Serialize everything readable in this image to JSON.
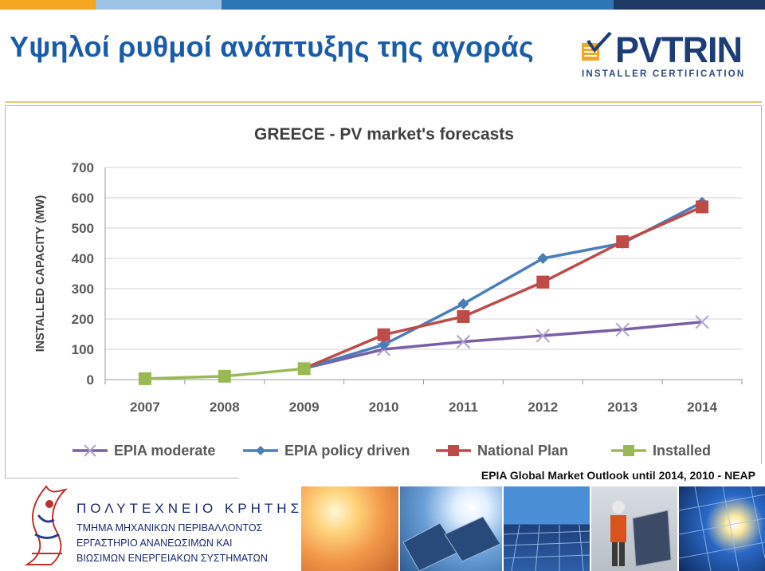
{
  "slide": {
    "title": "Υψηλοί ρυθμοί ανάπτυξης της αγοράς",
    "logo_text": "PVTRIN",
    "logo_subtitle": "INSTALLER CERTIFICATION",
    "caption": "EPIA Global Market Outlook until 2014, 2010 - NEAP",
    "accent_colors": [
      "#f5a623",
      "#9dc3e6",
      "#2e75b6",
      "#1f3864"
    ]
  },
  "university": {
    "name": "ΠΟΛΥΤΕΧΝΕΙΟ ΚΡΗΤΗΣ",
    "department": "ΤΜΗΜΑ ΜΗΧΑΝΙΚΩΝ ΠΕΡΙΒΑΛΛΟΝΤΟΣ",
    "lab_line1": "ΕΡΓΑΣΤΗΡΙΟ ΑΝΑΝΕΩΣΙΜΩΝ ΚΑΙ",
    "lab_line2": "ΒΙΩΣΙΜΩΝ ΕΝΕΡΓΕΙΑΚΩΝ ΣΥΣΤΗΜΑΤΩΝ"
  },
  "chart_data": {
    "type": "line",
    "title": "GREECE - PV market's forecasts",
    "xlabel": "",
    "ylabel": "INSTALLED CAPACITY (MW)",
    "categories": [
      "2007",
      "2008",
      "2009",
      "2010",
      "2011",
      "2012",
      "2013",
      "2014"
    ],
    "ylim": [
      0,
      700
    ],
    "yticks": [
      "0",
      "100",
      "200",
      "300",
      "400",
      "500",
      "600",
      "700"
    ],
    "grid": true,
    "legend_position": "bottom",
    "series": [
      {
        "name": "EPIA moderate",
        "color": "#7a5ea8",
        "marker": "x",
        "values": [
          null,
          null,
          37,
          100,
          125,
          145,
          165,
          190
        ]
      },
      {
        "name": "EPIA policy driven",
        "color": "#4a7ebb",
        "marker": "diamond",
        "values": [
          null,
          null,
          37,
          115,
          250,
          400,
          450,
          585
        ]
      },
      {
        "name": "National Plan",
        "color": "#be4b48",
        "marker": "square",
        "values": [
          null,
          null,
          37,
          148,
          208,
          322,
          455,
          570
        ]
      },
      {
        "name": "Installed",
        "color": "#98b954",
        "marker": "square",
        "values": [
          3,
          11,
          36,
          null,
          null,
          null,
          null,
          null
        ]
      }
    ]
  }
}
